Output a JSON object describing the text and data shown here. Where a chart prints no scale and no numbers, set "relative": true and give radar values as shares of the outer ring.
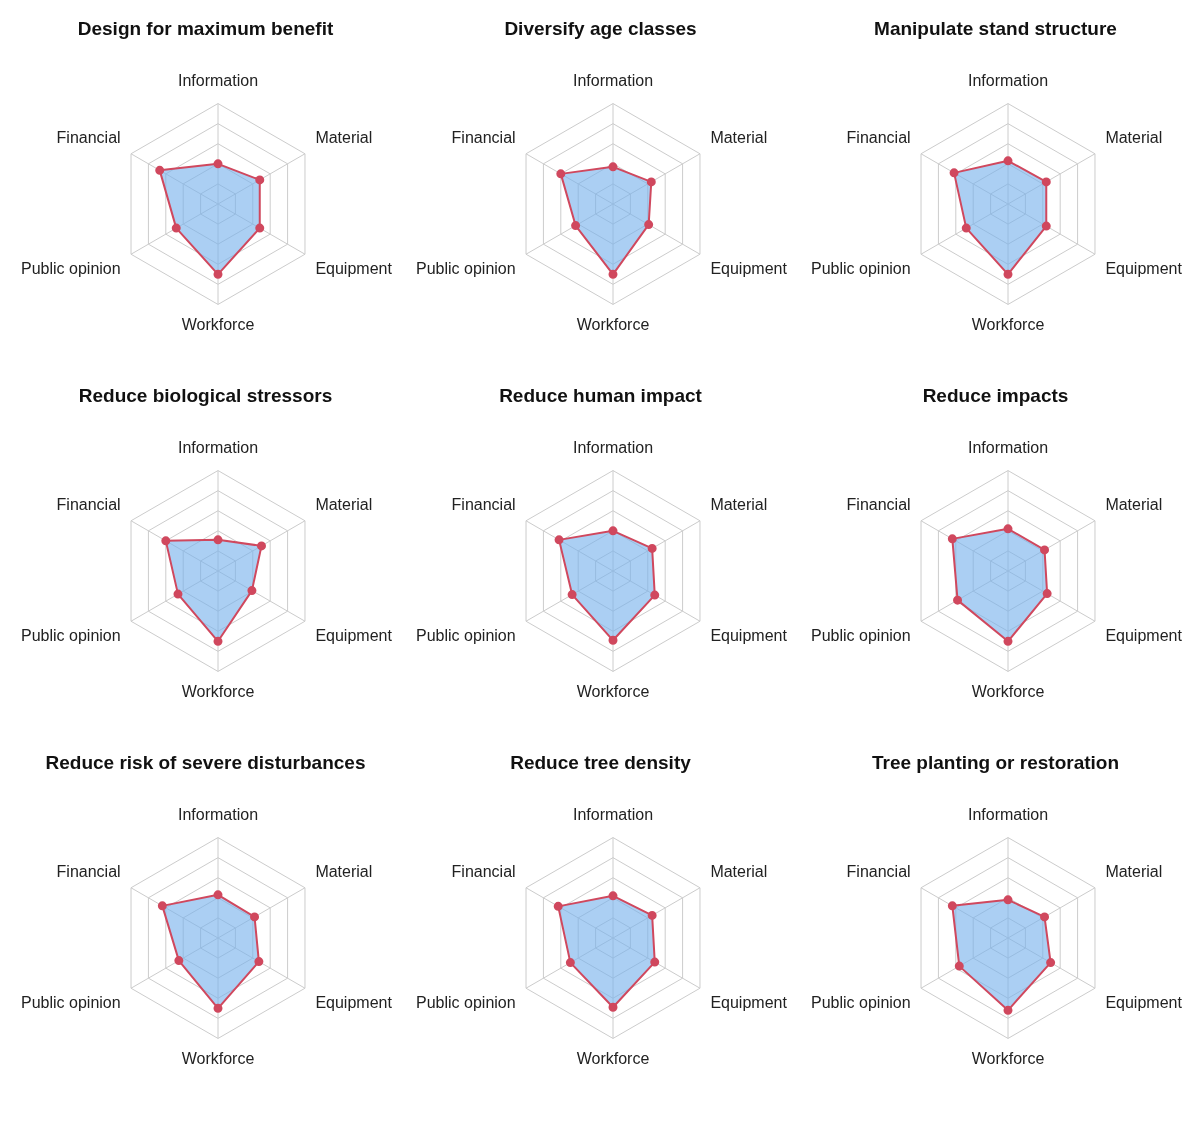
{
  "chart_data": [
    {
      "type": "radar",
      "title": "Design for maximum benefit",
      "categories": [
        "Information",
        "Material",
        "Equipment",
        "Workforce",
        "Public opinion",
        "Financial"
      ],
      "relative": true,
      "marker": "circle",
      "series": [
        {
          "color": "#d0485e",
          "values": [
            0.4,
            0.48,
            0.48,
            0.7,
            0.48,
            0.67
          ]
        }
      ]
    },
    {
      "type": "radar",
      "title": "Diversify age classes",
      "categories": [
        "Information",
        "Material",
        "Equipment",
        "Workforce",
        "Public opinion",
        "Financial"
      ],
      "relative": true,
      "marker": "circle",
      "series": [
        {
          "color": "#d0485e",
          "values": [
            0.37,
            0.44,
            0.41,
            0.7,
            0.43,
            0.6
          ]
        }
      ]
    },
    {
      "type": "radar",
      "title": "Manipulate stand structure",
      "categories": [
        "Information",
        "Material",
        "Equipment",
        "Workforce",
        "Public opinion",
        "Financial"
      ],
      "relative": true,
      "marker": "circle",
      "series": [
        {
          "color": "#d0485e",
          "values": [
            0.43,
            0.44,
            0.44,
            0.7,
            0.48,
            0.62
          ]
        }
      ]
    },
    {
      "type": "radar",
      "title": "Reduce biological stressors",
      "categories": [
        "Information",
        "Material",
        "Equipment",
        "Workforce",
        "Public opinion",
        "Financial"
      ],
      "relative": true,
      "marker": "circle",
      "series": [
        {
          "color": "#d0485e",
          "values": [
            0.31,
            0.5,
            0.39,
            0.7,
            0.46,
            0.6
          ]
        }
      ]
    },
    {
      "type": "radar",
      "title": "Reduce human impact",
      "categories": [
        "Information",
        "Material",
        "Equipment",
        "Workforce",
        "Public opinion",
        "Financial"
      ],
      "relative": true,
      "marker": "circle",
      "series": [
        {
          "color": "#d0485e",
          "values": [
            0.4,
            0.45,
            0.48,
            0.69,
            0.47,
            0.62
          ]
        }
      ]
    },
    {
      "type": "radar",
      "title": "Reduce impacts",
      "categories": [
        "Information",
        "Material",
        "Equipment",
        "Workforce",
        "Public opinion",
        "Financial"
      ],
      "relative": true,
      "marker": "circle",
      "series": [
        {
          "color": "#d0485e",
          "values": [
            0.42,
            0.42,
            0.45,
            0.7,
            0.58,
            0.64
          ]
        }
      ]
    },
    {
      "type": "radar",
      "title": "Reduce risk of severe disturbances",
      "categories": [
        "Information",
        "Material",
        "Equipment",
        "Workforce",
        "Public opinion",
        "Financial"
      ],
      "relative": true,
      "marker": "circle",
      "series": [
        {
          "color": "#d0485e",
          "values": [
            0.43,
            0.42,
            0.47,
            0.7,
            0.45,
            0.64
          ]
        }
      ]
    },
    {
      "type": "radar",
      "title": "Reduce tree density",
      "categories": [
        "Information",
        "Material",
        "Equipment",
        "Workforce",
        "Public opinion",
        "Financial"
      ],
      "relative": true,
      "marker": "circle",
      "series": [
        {
          "color": "#d0485e",
          "values": [
            0.42,
            0.45,
            0.48,
            0.69,
            0.49,
            0.63
          ]
        }
      ]
    },
    {
      "type": "radar",
      "title": "Tree planting or restoration",
      "categories": [
        "Information",
        "Material",
        "Equipment",
        "Workforce",
        "Public opinion",
        "Financial"
      ],
      "relative": true,
      "marker": "circle",
      "series": [
        {
          "color": "#d0485e",
          "values": [
            0.38,
            0.42,
            0.49,
            0.72,
            0.56,
            0.64
          ]
        }
      ]
    }
  ]
}
